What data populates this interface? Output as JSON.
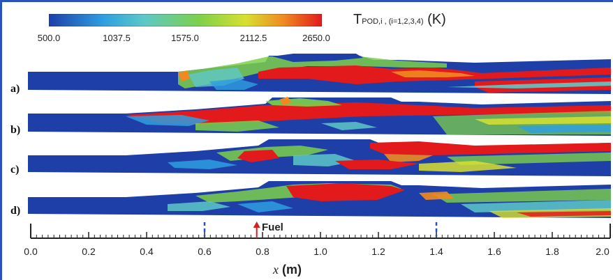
{
  "colorbar": {
    "ticks": [
      "500.0",
      "1037.5",
      "1575.0",
      "2112.5",
      "2650.0"
    ],
    "title_main": "T",
    "title_sub": "POD,i , (i=1,2,3,4)",
    "title_unit": " (K)",
    "colors": [
      "#1f3fa8",
      "#2f9fe0",
      "#5ec8c8",
      "#7ed04a",
      "#d8e030",
      "#f08a20",
      "#e31a1c"
    ]
  },
  "panels": [
    {
      "label": "a)"
    },
    {
      "label": "b)"
    },
    {
      "label": "c)"
    },
    {
      "label": "d)"
    }
  ],
  "axis": {
    "ticks": [
      "0.0",
      "0.2",
      "0.4",
      "0.6",
      "0.8",
      "1.0",
      "1.2",
      "1.4",
      "1.6",
      "1.8",
      "2.0"
    ],
    "xlabel_var": "x",
    "xlabel_unit": " (m)",
    "fuel_label": "Fuel",
    "markers": [
      0.6,
      1.4
    ],
    "fuel_position": 0.78
  },
  "palette": {
    "low": "#1f3fa8",
    "high": "#e31a1c",
    "marker": "#2a52be",
    "fuel_arrow": "#d42020"
  }
}
